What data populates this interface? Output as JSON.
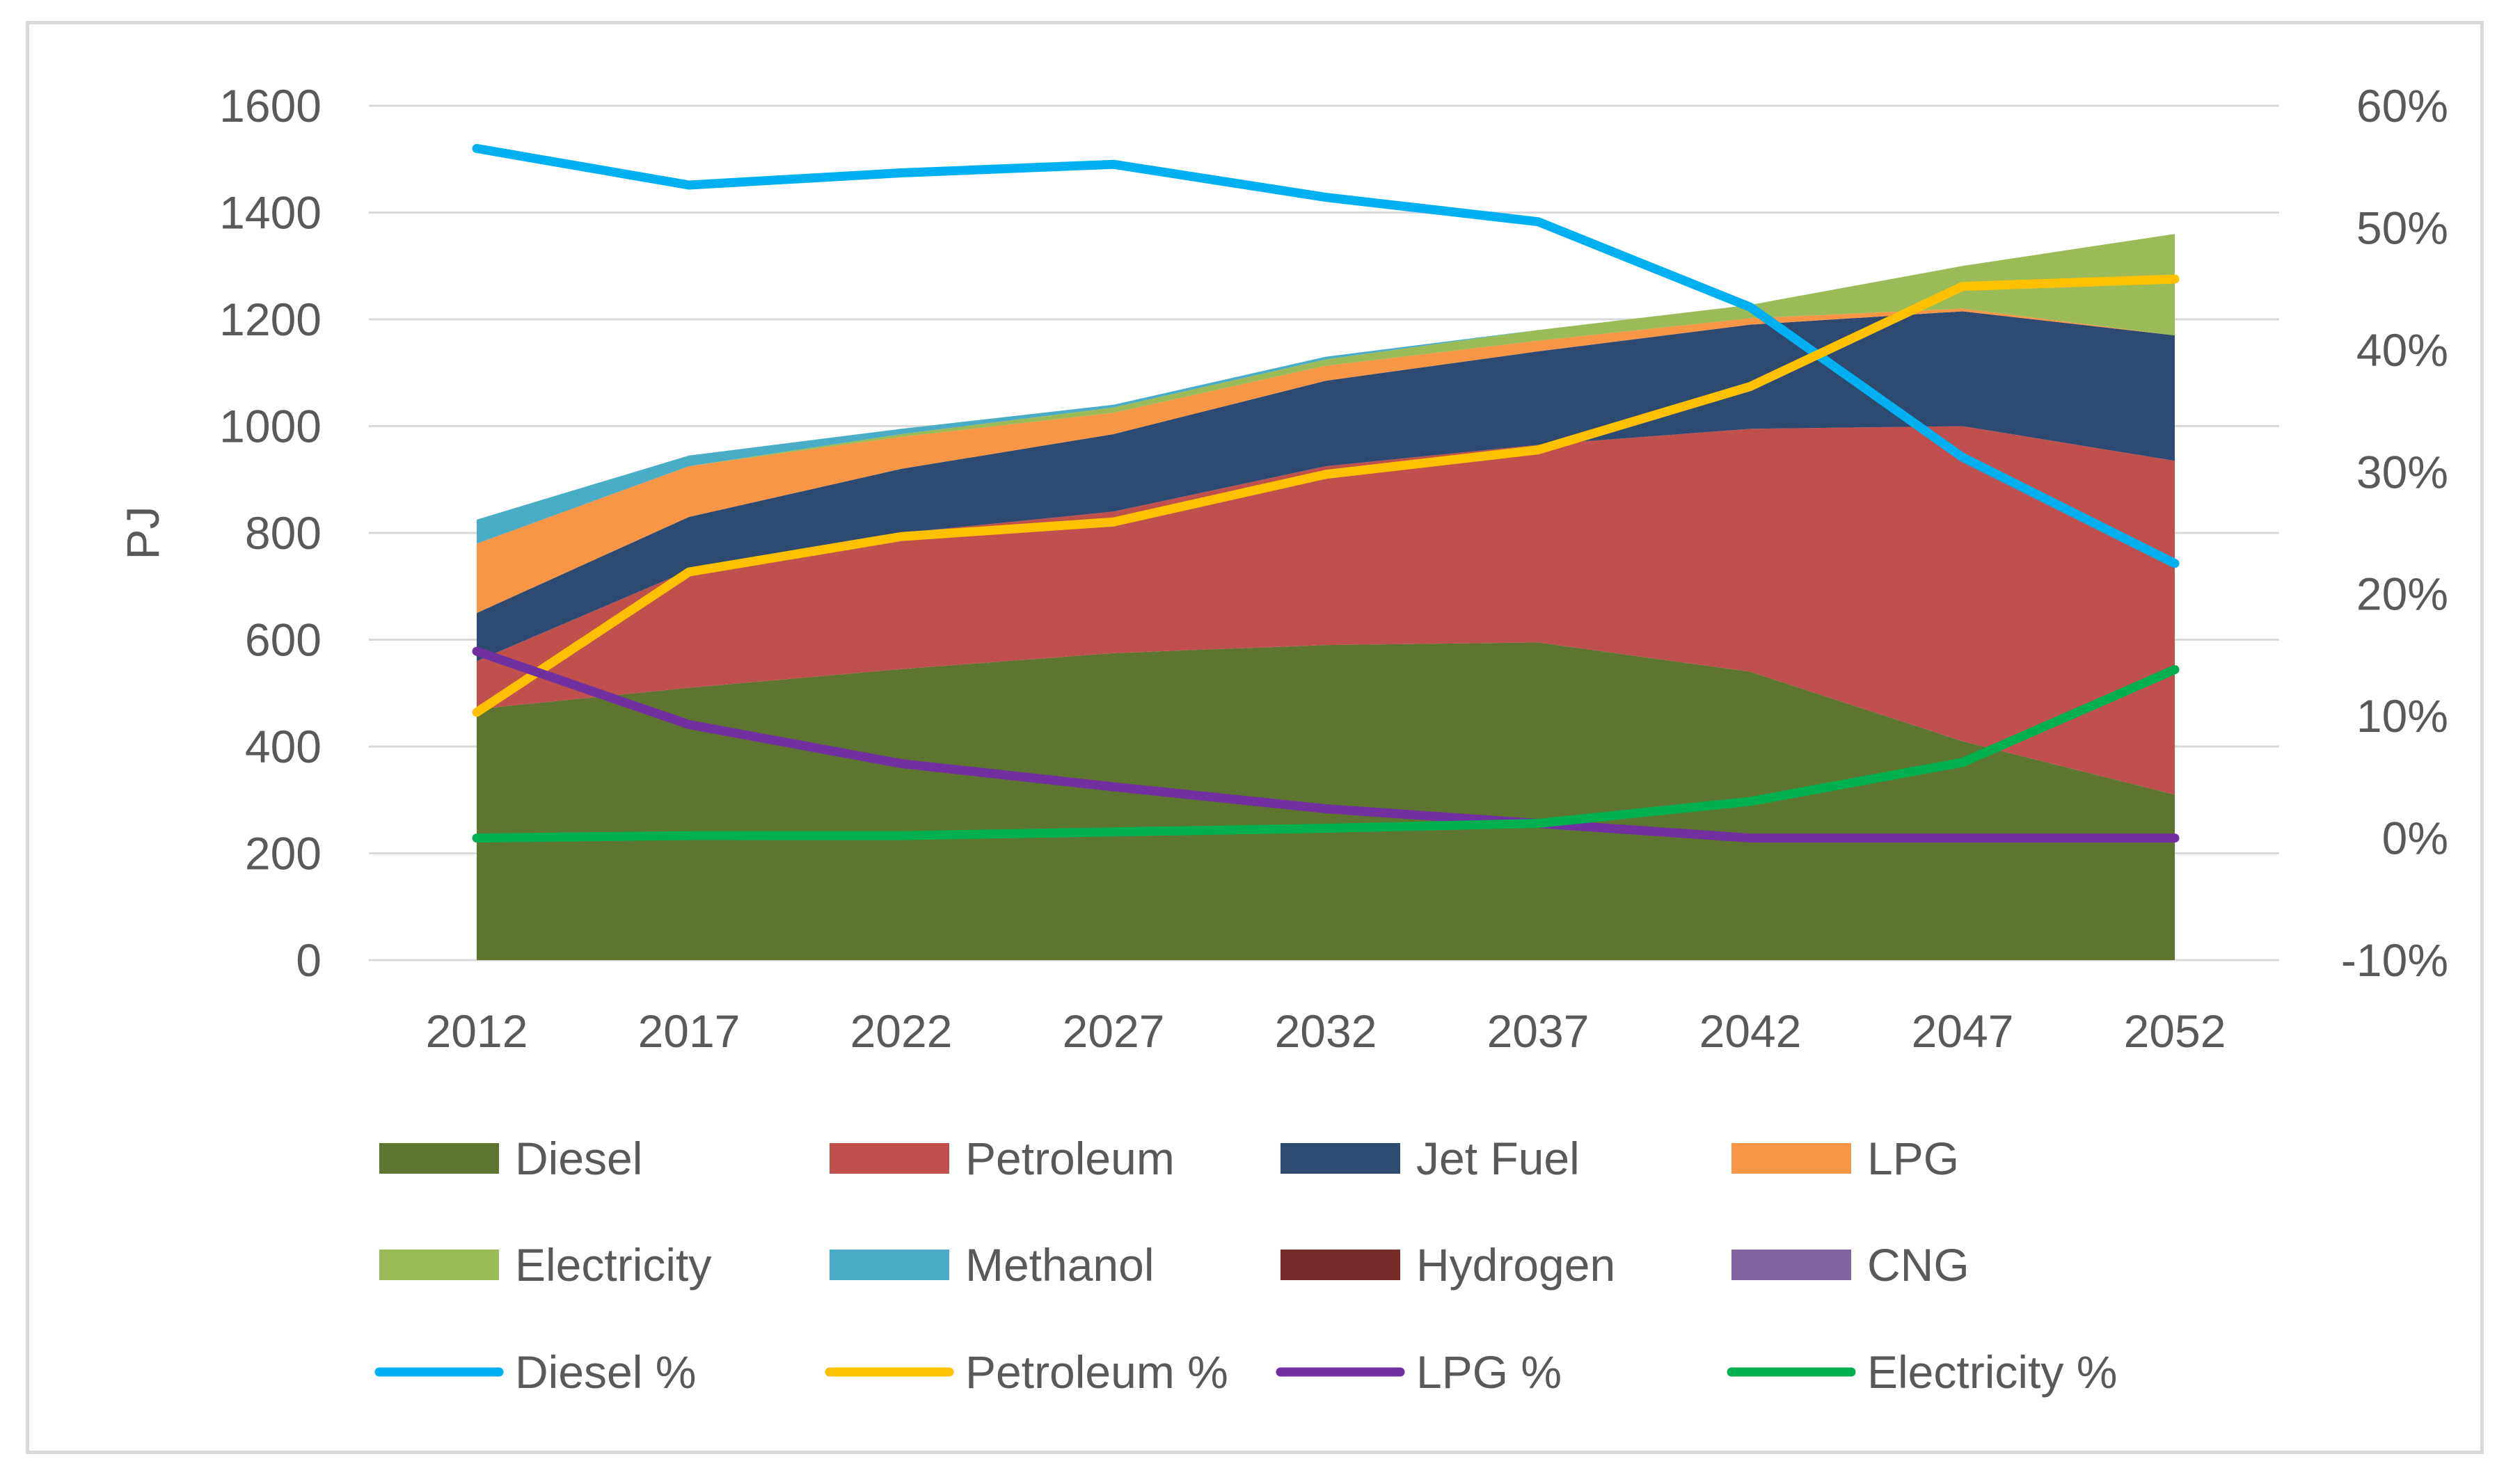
{
  "chart_data": {
    "type": "area",
    "x": [
      "2012",
      "2017",
      "2022",
      "2027",
      "2032",
      "2037",
      "2042",
      "2047",
      "2052"
    ],
    "ylabel": "PJ",
    "ylim": [
      0,
      1600
    ],
    "yticks": [
      "0",
      "200",
      "400",
      "600",
      "800",
      "1000",
      "1200",
      "1400",
      "1600"
    ],
    "y2lim": [
      -10,
      60
    ],
    "y2ticks": [
      "-10%",
      "0%",
      "10%",
      "20%",
      "30%",
      "40%",
      "50%",
      "60%"
    ],
    "grid": true,
    "legend_position": "bottom",
    "area_series": [
      {
        "name": "Diesel",
        "color": "#5e7530",
        "values": [
          470,
          510,
          545,
          575,
          590,
          595,
          540,
          410,
          310
        ]
      },
      {
        "name": "Petroleum",
        "color": "#c0504d",
        "values": [
          90,
          220,
          255,
          265,
          335,
          370,
          455,
          590,
          625
        ]
      },
      {
        "name": "Jet Fuel",
        "color": "#2e4a70",
        "values": [
          90,
          100,
          120,
          145,
          160,
          175,
          195,
          215,
          235
        ]
      },
      {
        "name": "LPG",
        "color": "#f79646",
        "values": [
          130,
          95,
          60,
          40,
          28,
          20,
          12,
          5,
          0
        ]
      },
      {
        "name": "Electricity",
        "color": "#9bbb59",
        "values": [
          0,
          0,
          5,
          10,
          12,
          20,
          25,
          80,
          190
        ]
      },
      {
        "name": "Methanol",
        "color": "#4bacc6",
        "values": [
          45,
          20,
          10,
          5,
          5,
          0,
          0,
          0,
          0
        ]
      },
      {
        "name": "Hydrogen",
        "color": "#772c2a",
        "values": [
          0,
          0,
          0,
          0,
          0,
          0,
          0,
          0,
          0
        ]
      },
      {
        "name": "CNG",
        "color": "#8064a2",
        "values": [
          0,
          0,
          0,
          0,
          0,
          0,
          0,
          0,
          0
        ]
      }
    ],
    "line_series": [
      {
        "name": "Diesel %",
        "color": "#00b0f0",
        "axis": "secondary",
        "values": [
          56.5,
          53.5,
          54.5,
          55.2,
          52.5,
          50.5,
          43.5,
          31.2,
          22.5
        ]
      },
      {
        "name": "Petroleum %",
        "color": "#ffc000",
        "axis": "secondary",
        "values": [
          10.3,
          21.8,
          24.7,
          25.9,
          29.8,
          31.8,
          37.0,
          45.2,
          45.8
        ]
      },
      {
        "name": "LPG %",
        "color": "#7030a0",
        "axis": "secondary",
        "values": [
          15.3,
          9.3,
          6.1,
          4.2,
          2.4,
          1.2,
          0.0,
          0.0,
          0.0
        ]
      },
      {
        "name": "Electricity %",
        "color": "#00b050",
        "axis": "secondary",
        "values": [
          0.0,
          0.2,
          0.2,
          0.5,
          0.8,
          1.2,
          3.0,
          6.2,
          13.8
        ]
      }
    ]
  }
}
